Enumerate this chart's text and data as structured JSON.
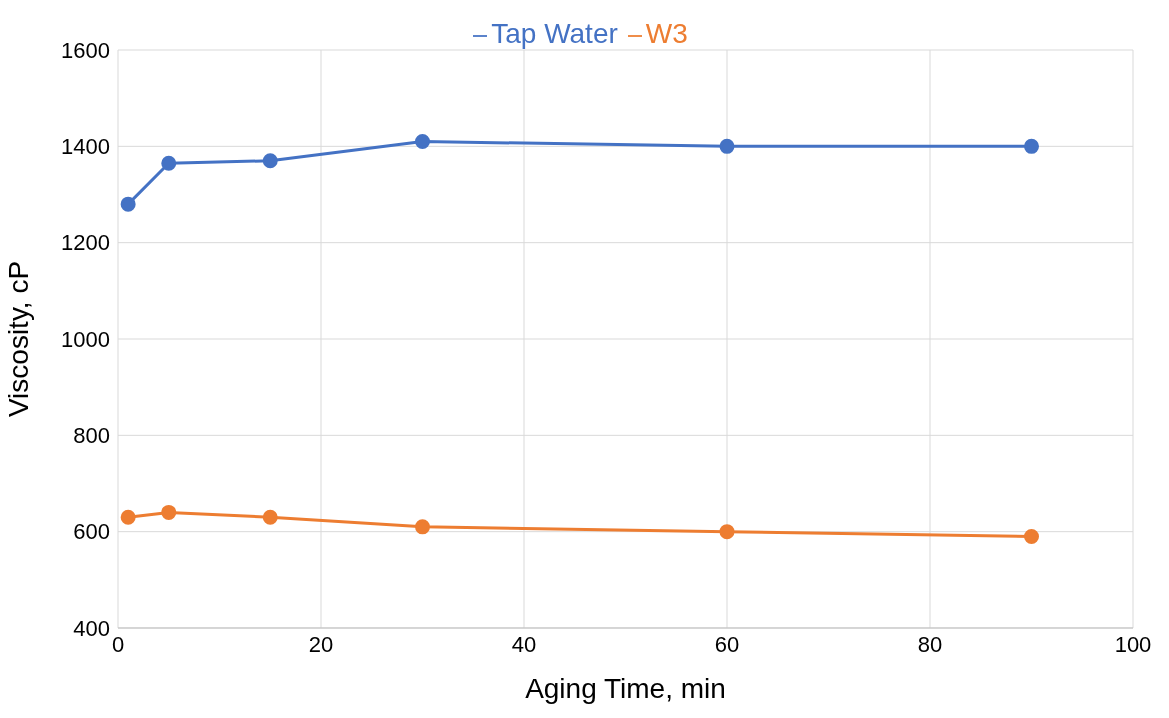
{
  "chart_data": {
    "type": "line",
    "xlabel": "Aging Time, min",
    "ylabel": "Viscosity, cP",
    "x": [
      1,
      5,
      15,
      30,
      60,
      90
    ],
    "series": [
      {
        "name": "Tap Water",
        "color": "#4472c4",
        "values": [
          1280,
          1365,
          1370,
          1410,
          1400,
          1400
        ]
      },
      {
        "name": "W3",
        "color": "#ed7d31",
        "values": [
          630,
          640,
          630,
          610,
          600,
          590
        ]
      }
    ],
    "xlim": [
      0,
      100
    ],
    "xticks": [
      0,
      20,
      40,
      60,
      80,
      100
    ],
    "ylim": [
      400,
      1600
    ],
    "yticks": [
      400,
      600,
      800,
      1000,
      1200,
      1400,
      1600
    ],
    "grid": true,
    "legend": "top",
    "marker": "circle",
    "line_style": "solid"
  }
}
